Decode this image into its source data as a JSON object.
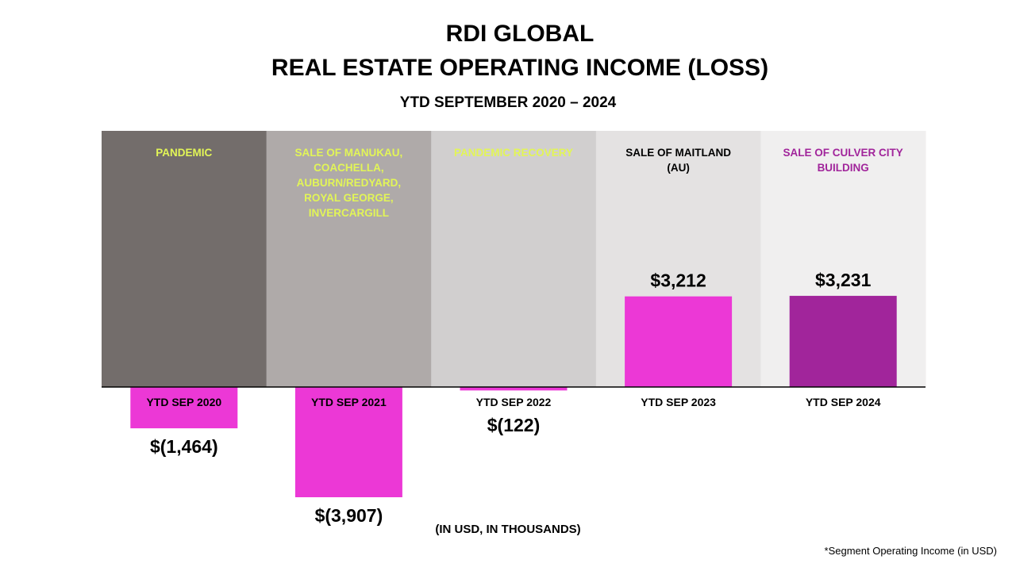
{
  "title_line1": "RDI GLOBAL",
  "title_line2": "REAL ESTATE OPERATING INCOME (LOSS)",
  "subtitle": "YTD SEPTEMBER 2020 – 2024",
  "units_note": "(IN USD, IN THOUSANDS)",
  "footnote": "*Segment Operating Income (in USD)",
  "bands": [
    {
      "label": "PANDEMIC",
      "bg": "#736d6b",
      "text_color": "#e2f557"
    },
    {
      "label": "SALE OF MANUKAU, COACHELLA, AUBURN/REDYARD, ROYAL GEORGE, INVERCARGILL",
      "bg": "#afaaa9",
      "text_color": "#e2f557"
    },
    {
      "label": "PANDEMIC RECOVERY",
      "bg": "#d1cfcf",
      "text_color": "#e2f557"
    },
    {
      "label": "SALE OF MAITLAND (AU)",
      "bg": "#e4e2e2",
      "text_color": "#000000"
    },
    {
      "label": "SALE OF CULVER CITY BUILDING",
      "bg": "#f0efef",
      "text_color": "#a1259b"
    }
  ],
  "chart_data": {
    "type": "bar",
    "categories": [
      "YTD SEP 2020",
      "YTD SEP 2021",
      "YTD SEP 2022",
      "YTD SEP 2023",
      "YTD SEP 2024"
    ],
    "values": [
      -1464,
      -3907,
      -122,
      3212,
      3231
    ],
    "data_labels": [
      "$(1,464)",
      "$(3,907)",
      "$(122)",
      "$3,212",
      "$3,231"
    ],
    "bar_colors": [
      "#ec38d6",
      "#ec38d6",
      "#ec38d6",
      "#ec38d6",
      "#a1259b"
    ],
    "ylim": [
      -3907,
      3231
    ],
    "grid": false,
    "legend": "none"
  }
}
